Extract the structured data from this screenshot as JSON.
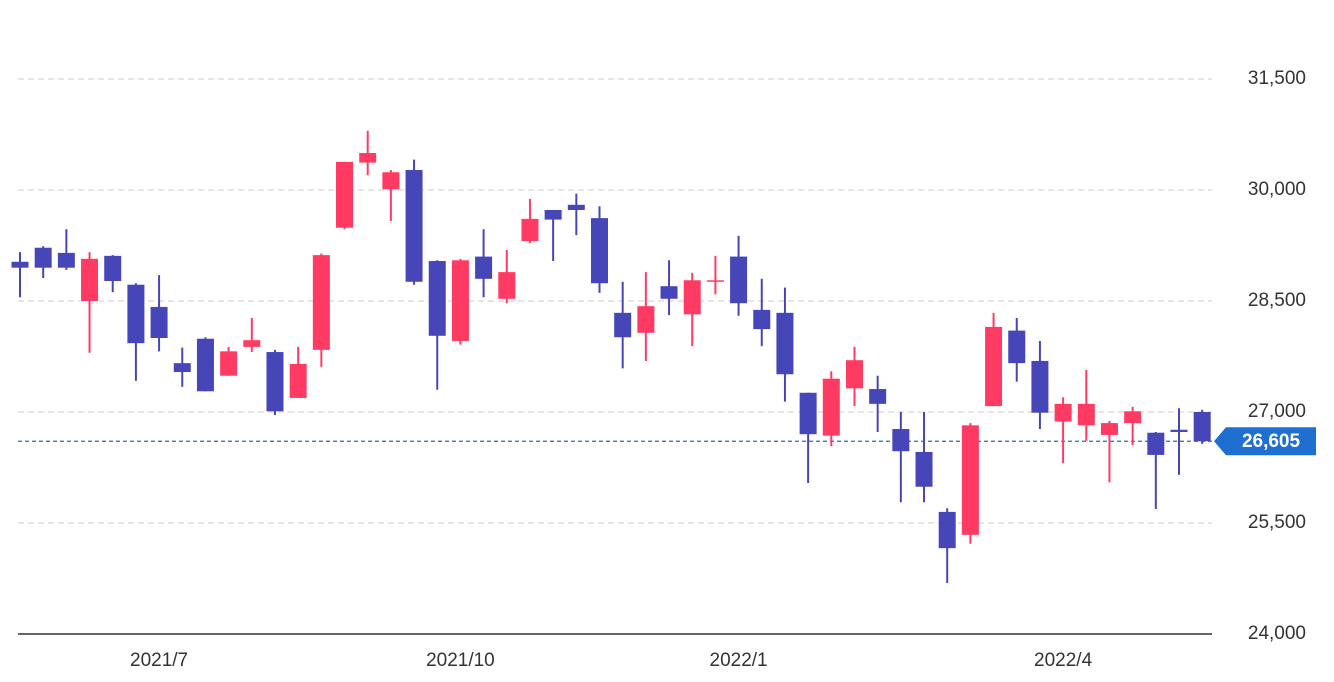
{
  "chart_data": {
    "type": "candlestick",
    "categories": [
      null,
      null,
      null,
      null,
      null,
      null,
      "2021/7",
      null,
      null,
      null,
      null,
      null,
      null,
      null,
      null,
      null,
      null,
      null,
      null,
      "2021/10",
      null,
      null,
      null,
      null,
      null,
      null,
      null,
      null,
      null,
      null,
      null,
      "2022/1",
      null,
      null,
      null,
      null,
      null,
      null,
      null,
      null,
      null,
      null,
      null,
      null,
      null,
      "2022/4",
      null,
      null,
      null,
      null,
      null,
      null
    ],
    "ohlc": [
      [
        29030,
        29160,
        28550,
        28950
      ],
      [
        29220,
        29240,
        28810,
        28950
      ],
      [
        29150,
        29470,
        28920,
        28950
      ],
      [
        28500,
        29160,
        27800,
        29070
      ],
      [
        29110,
        29120,
        28620,
        28770
      ],
      [
        28720,
        28740,
        27420,
        27930
      ],
      [
        28420,
        28850,
        27820,
        28000
      ],
      [
        27660,
        27870,
        27340,
        27540
      ],
      [
        27990,
        28010,
        27280,
        27280
      ],
      [
        27490,
        27880,
        27490,
        27820
      ],
      [
        27880,
        28270,
        27810,
        27970
      ],
      [
        27810,
        27840,
        26960,
        27010
      ],
      [
        27190,
        27880,
        27190,
        27650
      ],
      [
        27840,
        29140,
        27610,
        29120
      ],
      [
        29490,
        30380,
        29470,
        30380
      ],
      [
        30370,
        30800,
        30200,
        30500
      ],
      [
        30010,
        30270,
        29580,
        30240
      ],
      [
        30270,
        30410,
        28720,
        28760
      ],
      [
        29040,
        29050,
        27300,
        28030
      ],
      [
        27960,
        29070,
        27910,
        29050
      ],
      [
        29100,
        29470,
        28550,
        28800
      ],
      [
        28530,
        29190,
        28470,
        28890
      ],
      [
        29310,
        29880,
        29280,
        29610
      ],
      [
        29730,
        29730,
        29040,
        29600
      ],
      [
        29800,
        29950,
        29390,
        29730
      ],
      [
        29620,
        29780,
        28610,
        28740
      ],
      [
        28340,
        28760,
        27590,
        28010
      ],
      [
        28070,
        28890,
        27690,
        28430
      ],
      [
        28700,
        29050,
        28310,
        28530
      ],
      [
        28320,
        28880,
        27890,
        28780
      ],
      [
        28770,
        29110,
        28590,
        28780
      ],
      [
        29100,
        29380,
        28300,
        28470
      ],
      [
        28380,
        28800,
        27890,
        28120
      ],
      [
        28340,
        28680,
        27140,
        27510
      ],
      [
        27260,
        27260,
        26040,
        26700
      ],
      [
        26680,
        27550,
        26540,
        27450
      ],
      [
        27320,
        27880,
        27080,
        27700
      ],
      [
        27310,
        27490,
        26730,
        27110
      ],
      [
        26770,
        27000,
        25780,
        26470
      ],
      [
        26460,
        27000,
        25780,
        25990
      ],
      [
        25650,
        25700,
        24690,
        25160
      ],
      [
        25340,
        26850,
        25220,
        26820
      ],
      [
        27080,
        28340,
        27080,
        28150
      ],
      [
        28100,
        28270,
        27410,
        27660
      ],
      [
        27690,
        27960,
        26770,
        26990
      ],
      [
        26870,
        27200,
        26310,
        27110
      ],
      [
        26820,
        27570,
        26610,
        27110
      ],
      [
        26690,
        26880,
        26050,
        26850
      ],
      [
        26850,
        27070,
        26550,
        27010
      ],
      [
        26720,
        26730,
        25690,
        26420
      ],
      [
        26760,
        27050,
        26150,
        26730
      ],
      [
        27000,
        27030,
        26570,
        26605
      ]
    ],
    "up_color": "#ff3b63",
    "down_color": "#4646b8",
    "ylim": [
      24000,
      32000
    ],
    "yticks": [
      {
        "value": 24000,
        "label": "24,000"
      },
      {
        "value": 25500,
        "label": "25,500"
      },
      {
        "value": 27000,
        "label": "27,000"
      },
      {
        "value": 28500,
        "label": "28,500"
      },
      {
        "value": 30000,
        "label": "30,000"
      },
      {
        "value": 31500,
        "label": "31,500"
      }
    ],
    "grid": true,
    "last_price": {
      "value": 26605,
      "label": "26,605",
      "color": "#1e6fd0"
    }
  }
}
